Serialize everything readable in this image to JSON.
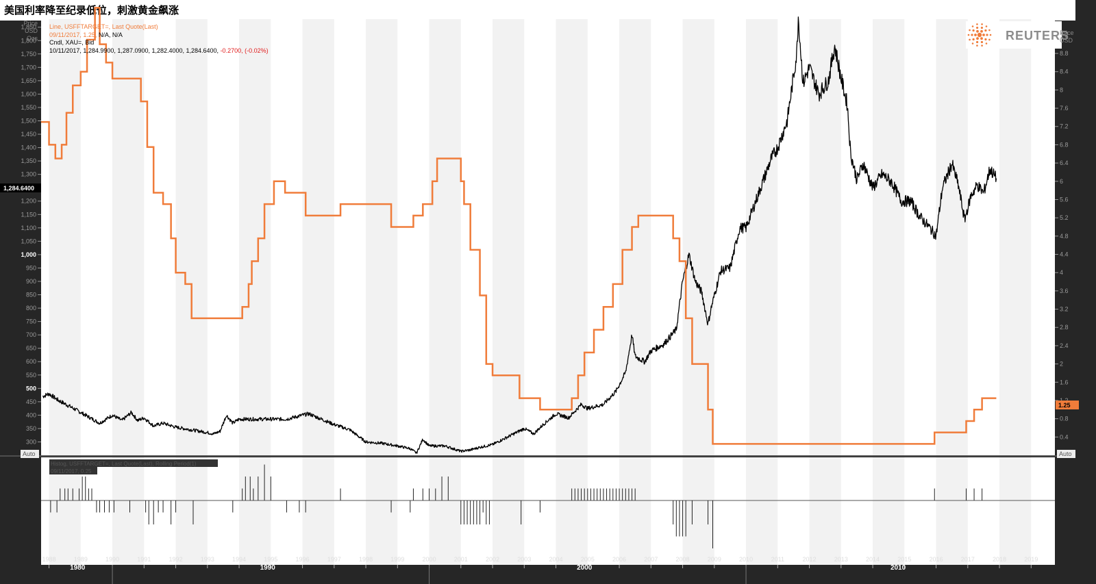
{
  "page": {
    "title": "美国利率降至纪录低位，刺激黄金飙涨"
  },
  "header": {
    "price_label_left": [
      "Price",
      "USD",
      "Ozs"
    ],
    "price_label_right": [
      "Price",
      "USD"
    ],
    "logo_text": "REUTERS",
    "auto_left": "Auto",
    "auto_right": "Auto"
  },
  "legend": {
    "line1": "Line, USFFTARGET=, Last Quote(Last)",
    "line2_prefix": "09/11/2017, 1.25,",
    "line2_suffix": " N/A, N/A",
    "line3": "Cndl, XAU=, Bid",
    "line4_prefix": "10/11/2017, 1,284.9900, 1,287.0900, 1,282.4000, 1,284.6400,",
    "line4_change": " -0.2700, (-0.02%)"
  },
  "badges": {
    "gold_last": "1,284.6400",
    "rate_last": "1.25"
  },
  "lower_panel": {
    "legend1": "Histog, USFFTARGET=, Last Quote(Last), Rolling Period(1)",
    "legend2": "09/11/2017, 0.25"
  },
  "colors": {
    "background_panel": "#ffffff",
    "band": "#f2f2f2",
    "gold_series": "#000000",
    "rate_series": "#f07c3a",
    "frame": "#262626",
    "negative_text": "#e11b1b"
  },
  "chart_data": [
    {
      "type": "line",
      "title": "美国利率降至纪录低位，刺激黄金飙涨",
      "grid": false,
      "xlim": [
        1987.75,
        2019.75
      ],
      "x_ticks": [
        "1988",
        "1989",
        "1990",
        "1991",
        "1992",
        "1993",
        "1994",
        "1995",
        "1996",
        "1997",
        "1998",
        "1999",
        "2000",
        "2001",
        "2002",
        "2003",
        "2004",
        "2005",
        "2006",
        "2007",
        "2008",
        "2009",
        "2010",
        "2011",
        "2012",
        "2013",
        "2014",
        "2015",
        "2016",
        "2017",
        "2018",
        "2019"
      ],
      "x_decade_labels": [
        "1980",
        "1990",
        "2000",
        "2010"
      ],
      "left_axis": {
        "label": "Price USD Ozs",
        "ylim": [
          250,
          1880
        ],
        "ticks": [
          "300",
          "350",
          "400",
          "450",
          "500",
          "550",
          "600",
          "650",
          "700",
          "750",
          "800",
          "850",
          "900",
          "950",
          "1,000",
          "1,050",
          "1,100",
          "1,150",
          "1,200",
          "1,250",
          "1,300",
          "1,350",
          "1,400",
          "1,450",
          "1,500",
          "1,550",
          "1,600",
          "1,650",
          "1,700",
          "1,750",
          "1,800",
          "1,850"
        ]
      },
      "right_axis": {
        "label": "Price USD",
        "ylim": [
          0,
          9.55
        ],
        "ticks": [
          "0.4",
          "0.8",
          "1.2",
          "1.6",
          "2",
          "2.4",
          "2.8",
          "3.2",
          "3.6",
          "4",
          "4.4",
          "4.8",
          "5.2",
          "5.6",
          "6",
          "6.4",
          "6.8",
          "7.2",
          "7.6",
          "8",
          "8.4",
          "8.8",
          "9.2"
        ]
      },
      "series": [
        {
          "name": "Line, USFFTARGET=, Last Quote(Last)",
          "axis": "right",
          "step": true,
          "points": [
            [
              1987.75,
              7.3
            ],
            [
              1988.0,
              6.8
            ],
            [
              1988.2,
              6.5
            ],
            [
              1988.4,
              6.8
            ],
            [
              1988.55,
              7.5
            ],
            [
              1988.75,
              8.1
            ],
            [
              1989.0,
              8.4
            ],
            [
              1989.2,
              9.1
            ],
            [
              1989.45,
              9.8
            ],
            [
              1989.6,
              9.0
            ],
            [
              1989.8,
              8.6
            ],
            [
              1990.0,
              8.25
            ],
            [
              1990.9,
              7.75
            ],
            [
              1991.1,
              6.75
            ],
            [
              1991.3,
              5.75
            ],
            [
              1991.6,
              5.5
            ],
            [
              1991.85,
              4.75
            ],
            [
              1992.0,
              4.0
            ],
            [
              1992.3,
              3.75
            ],
            [
              1992.5,
              3.0
            ],
            [
              1993.0,
              3.0
            ],
            [
              1994.1,
              3.25
            ],
            [
              1994.3,
              3.75
            ],
            [
              1994.4,
              4.25
            ],
            [
              1994.6,
              4.75
            ],
            [
              1994.8,
              5.5
            ],
            [
              1995.1,
              6.0
            ],
            [
              1995.45,
              5.75
            ],
            [
              1996.1,
              5.25
            ],
            [
              1997.2,
              5.5
            ],
            [
              1998.8,
              5.0
            ],
            [
              1999.5,
              5.25
            ],
            [
              1999.8,
              5.5
            ],
            [
              2000.1,
              6.0
            ],
            [
              2000.25,
              6.5
            ],
            [
              2001.0,
              6.0
            ],
            [
              2001.1,
              5.5
            ],
            [
              2001.3,
              4.5
            ],
            [
              2001.6,
              3.5
            ],
            [
              2001.8,
              2.0
            ],
            [
              2002.0,
              1.75
            ],
            [
              2002.85,
              1.25
            ],
            [
              2003.5,
              1.0
            ],
            [
              2004.5,
              1.25
            ],
            [
              2004.7,
              1.75
            ],
            [
              2004.9,
              2.25
            ],
            [
              2005.2,
              2.75
            ],
            [
              2005.5,
              3.25
            ],
            [
              2005.8,
              3.75
            ],
            [
              2006.1,
              4.5
            ],
            [
              2006.4,
              5.0
            ],
            [
              2006.6,
              5.25
            ],
            [
              2007.7,
              4.75
            ],
            [
              2007.9,
              4.25
            ],
            [
              2008.1,
              3.0
            ],
            [
              2008.3,
              2.0
            ],
            [
              2008.8,
              1.0
            ],
            [
              2008.95,
              0.25
            ],
            [
              2015.95,
              0.5
            ],
            [
              2016.95,
              0.75
            ],
            [
              2017.2,
              1.0
            ],
            [
              2017.45,
              1.25
            ],
            [
              2017.9,
              1.25
            ]
          ]
        },
        {
          "name": "Cndl, XAU=, Bid",
          "axis": "left",
          "points": [
            [
              1987.8,
              470
            ],
            [
              1988.0,
              480
            ],
            [
              1988.3,
              455
            ],
            [
              1988.7,
              430
            ],
            [
              1989.0,
              410
            ],
            [
              1989.3,
              390
            ],
            [
              1989.6,
              370
            ],
            [
              1990.0,
              400
            ],
            [
              1990.3,
              380
            ],
            [
              1990.6,
              410
            ],
            [
              1990.8,
              380
            ],
            [
              1991.0,
              390
            ],
            [
              1991.3,
              360
            ],
            [
              1991.6,
              370
            ],
            [
              1992.0,
              355
            ],
            [
              1992.5,
              345
            ],
            [
              1993.0,
              335
            ],
            [
              1993.2,
              330
            ],
            [
              1993.4,
              340
            ],
            [
              1993.6,
              400
            ],
            [
              1993.8,
              370
            ],
            [
              1994.0,
              385
            ],
            [
              1994.5,
              385
            ],
            [
              1995.0,
              385
            ],
            [
              1995.5,
              385
            ],
            [
              1996.0,
              400
            ],
            [
              1996.2,
              405
            ],
            [
              1996.6,
              385
            ],
            [
              1997.0,
              365
            ],
            [
              1997.5,
              345
            ],
            [
              1998.0,
              300
            ],
            [
              1998.5,
              295
            ],
            [
              1999.0,
              285
            ],
            [
              1999.4,
              275
            ],
            [
              1999.6,
              258
            ],
            [
              1999.8,
              310
            ],
            [
              2000.0,
              285
            ],
            [
              2000.5,
              285
            ],
            [
              2001.0,
              265
            ],
            [
              2001.3,
              270
            ],
            [
              2001.6,
              280
            ],
            [
              2002.0,
              290
            ],
            [
              2002.5,
              320
            ],
            [
              2003.0,
              350
            ],
            [
              2003.3,
              330
            ],
            [
              2003.6,
              365
            ],
            [
              2004.0,
              405
            ],
            [
              2004.4,
              390
            ],
            [
              2004.8,
              440
            ],
            [
              2005.0,
              425
            ],
            [
              2005.5,
              440
            ],
            [
              2005.9,
              490
            ],
            [
              2006.2,
              560
            ],
            [
              2006.4,
              700
            ],
            [
              2006.5,
              620
            ],
            [
              2006.8,
              600
            ],
            [
              2007.0,
              640
            ],
            [
              2007.4,
              665
            ],
            [
              2007.8,
              720
            ],
            [
              2008.0,
              900
            ],
            [
              2008.2,
              1000
            ],
            [
              2008.4,
              900
            ],
            [
              2008.6,
              860
            ],
            [
              2008.8,
              740
            ],
            [
              2008.9,
              800
            ],
            [
              2009.2,
              940
            ],
            [
              2009.5,
              950
            ],
            [
              2009.8,
              1100
            ],
            [
              2010.0,
              1100
            ],
            [
              2010.4,
              1230
            ],
            [
              2010.8,
              1360
            ],
            [
              2011.0,
              1400
            ],
            [
              2011.3,
              1500
            ],
            [
              2011.6,
              1750
            ],
            [
              2011.65,
              1890
            ],
            [
              2011.8,
              1640
            ],
            [
              2012.0,
              1700
            ],
            [
              2012.3,
              1600
            ],
            [
              2012.6,
              1650
            ],
            [
              2012.8,
              1780
            ],
            [
              2013.0,
              1660
            ],
            [
              2013.2,
              1560
            ],
            [
              2013.3,
              1380
            ],
            [
              2013.5,
              1280
            ],
            [
              2013.7,
              1340
            ],
            [
              2014.0,
              1250
            ],
            [
              2014.3,
              1300
            ],
            [
              2014.6,
              1270
            ],
            [
              2014.9,
              1200
            ],
            [
              2015.2,
              1200
            ],
            [
              2015.5,
              1140
            ],
            [
              2015.8,
              1100
            ],
            [
              2016.0,
              1070
            ],
            [
              2016.2,
              1250
            ],
            [
              2016.5,
              1340
            ],
            [
              2016.7,
              1260
            ],
            [
              2016.9,
              1130
            ],
            [
              2017.1,
              1220
            ],
            [
              2017.3,
              1260
            ],
            [
              2017.5,
              1230
            ],
            [
              2017.7,
              1320
            ],
            [
              2017.9,
              1285
            ]
          ]
        }
      ]
    },
    {
      "type": "bar",
      "title": "Histog, USFFTARGET=, Last Quote(Last), Rolling Period(1)",
      "unit": "percentage point change",
      "x": [
        1988.05,
        1988.25,
        1988.35,
        1988.5,
        1988.6,
        1988.75,
        1988.95,
        1989.05,
        1989.15,
        1989.25,
        1989.35,
        1989.5,
        1989.6,
        1989.75,
        1989.9,
        1990.05,
        1990.55,
        1991.05,
        1991.15,
        1991.3,
        1991.45,
        1991.6,
        1991.85,
        1992.0,
        1992.55,
        1993.8,
        1994.1,
        1994.2,
        1994.35,
        1994.45,
        1994.6,
        1994.8,
        1995.0,
        1995.5,
        1995.9,
        1996.1,
        1997.2,
        1998.8,
        1999.4,
        1999.5,
        1999.8,
        2000.0,
        2000.2,
        2000.4,
        2000.6,
        2001.0,
        2001.1,
        2001.2,
        2001.3,
        2001.4,
        2001.5,
        2001.6,
        2001.7,
        2001.8,
        2001.9,
        2002.9,
        2003.5,
        2004.5,
        2004.6,
        2004.7,
        2004.8,
        2004.9,
        2005.0,
        2005.1,
        2005.2,
        2005.3,
        2005.4,
        2005.5,
        2005.6,
        2005.7,
        2005.8,
        2005.9,
        2006.0,
        2006.1,
        2006.2,
        2006.3,
        2006.4,
        2006.5,
        2007.7,
        2007.8,
        2007.9,
        2008.0,
        2008.1,
        2008.3,
        2008.8,
        2008.95,
        2015.95,
        2016.95,
        2017.2,
        2017.45
      ],
      "values": [
        -0.25,
        -0.25,
        0.25,
        0.25,
        0.25,
        0.25,
        0.25,
        0.5,
        0.5,
        0.25,
        0.25,
        -0.25,
        -0.25,
        -0.25,
        -0.25,
        -0.25,
        -0.25,
        -0.25,
        -0.5,
        -0.5,
        -0.25,
        -0.25,
        -0.5,
        -0.25,
        -0.5,
        -0.25,
        0.25,
        0.5,
        0.5,
        0.25,
        0.5,
        0.75,
        0.5,
        -0.25,
        -0.25,
        -0.25,
        0.25,
        -0.25,
        -0.25,
        0.25,
        0.25,
        0.25,
        0.25,
        0.5,
        0.5,
        -0.5,
        -0.5,
        -0.5,
        -0.5,
        -0.5,
        -0.5,
        -0.5,
        -0.25,
        -0.5,
        -0.5,
        -0.5,
        -0.25,
        0.25,
        0.25,
        0.25,
        0.25,
        0.25,
        0.25,
        0.25,
        0.25,
        0.25,
        0.25,
        0.25,
        0.25,
        0.25,
        0.25,
        0.25,
        0.25,
        0.25,
        0.25,
        0.25,
        0.25,
        0.25,
        -0.5,
        -0.75,
        -0.75,
        -0.75,
        -0.75,
        -0.5,
        -0.5,
        -1.0,
        0.25,
        0.25,
        0.25,
        0.25
      ]
    }
  ]
}
